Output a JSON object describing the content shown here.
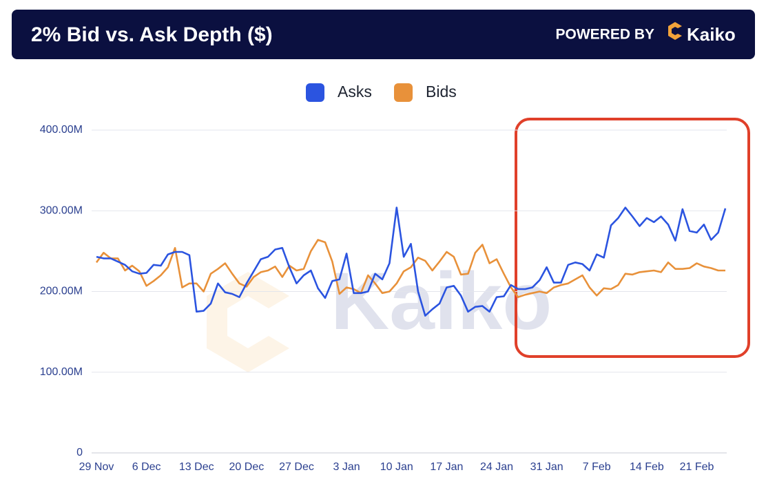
{
  "header": {
    "title": "2% Bid vs. Ask Depth ($)",
    "powered_by": "POWERED BY",
    "brand": "Kaiko"
  },
  "chart_data": {
    "type": "line",
    "watermark": "Kaiko",
    "categories": [
      "29 Nov",
      null,
      null,
      null,
      null,
      null,
      null,
      "6 Dec",
      null,
      null,
      null,
      null,
      null,
      null,
      "13 Dec",
      null,
      null,
      null,
      null,
      null,
      null,
      "20 Dec",
      null,
      null,
      null,
      null,
      null,
      null,
      "27 Dec",
      null,
      null,
      null,
      null,
      null,
      null,
      "3 Jan",
      null,
      null,
      null,
      null,
      null,
      null,
      "10 Jan",
      null,
      null,
      null,
      null,
      null,
      null,
      "17 Jan",
      null,
      null,
      null,
      null,
      null,
      null,
      "24 Jan",
      null,
      null,
      null,
      null,
      null,
      null,
      "31 Jan",
      null,
      null,
      null,
      null,
      null,
      null,
      "7 Feb",
      null,
      null,
      null,
      null,
      null,
      null,
      "14 Feb",
      null,
      null,
      null,
      null,
      null,
      null,
      "21 Feb",
      null,
      null,
      null,
      null
    ],
    "series": [
      {
        "name": "Asks",
        "color": "#2b54e0",
        "values": [
          243,
          241,
          241,
          237,
          233,
          225,
          222,
          223,
          233,
          232,
          246,
          249,
          249,
          245,
          175,
          176,
          185,
          210,
          199,
          197,
          193,
          210,
          225,
          240,
          243,
          252,
          254,
          230,
          210,
          220,
          226,
          204,
          192,
          213,
          215,
          247,
          198,
          198,
          200,
          222,
          215,
          235,
          304,
          243,
          259,
          200,
          170,
          178,
          185,
          205,
          207,
          195,
          175,
          181,
          182,
          175,
          193,
          194,
          208,
          203,
          203,
          205,
          214,
          230,
          211,
          211,
          233,
          236,
          234,
          226,
          246,
          242,
          282,
          291,
          304,
          293,
          281,
          291,
          286,
          293,
          283,
          263,
          302,
          275,
          273,
          283,
          264,
          273,
          303
        ]
      },
      {
        "name": "Bids",
        "color": "#e8913a",
        "values": [
          236,
          248,
          241,
          241,
          226,
          232,
          225,
          207,
          213,
          220,
          230,
          254,
          205,
          210,
          210,
          200,
          222,
          228,
          235,
          222,
          210,
          206,
          218,
          224,
          226,
          231,
          218,
          232,
          226,
          228,
          250,
          264,
          261,
          237,
          197,
          205,
          203,
          198,
          220,
          210,
          198,
          200,
          210,
          225,
          230,
          242,
          238,
          226,
          237,
          249,
          243,
          221,
          222,
          248,
          258,
          235,
          240,
          222,
          205,
          193,
          196,
          198,
          200,
          198,
          205,
          208,
          210,
          215,
          220,
          205,
          195,
          204,
          203,
          208,
          222,
          221,
          224,
          225,
          226,
          224,
          236,
          228,
          228,
          229,
          235,
          231,
          229,
          226,
          226
        ]
      }
    ],
    "ylim": [
      0,
      400
    ],
    "yticks": [
      0,
      {
        "value": 100,
        "label": "100.00M"
      },
      {
        "value": 200,
        "label": "200.00M"
      },
      {
        "value": 300,
        "label": "300.00M"
      },
      {
        "value": 400,
        "label": "400.00M"
      }
    ],
    "grid": true,
    "legend": "top"
  }
}
